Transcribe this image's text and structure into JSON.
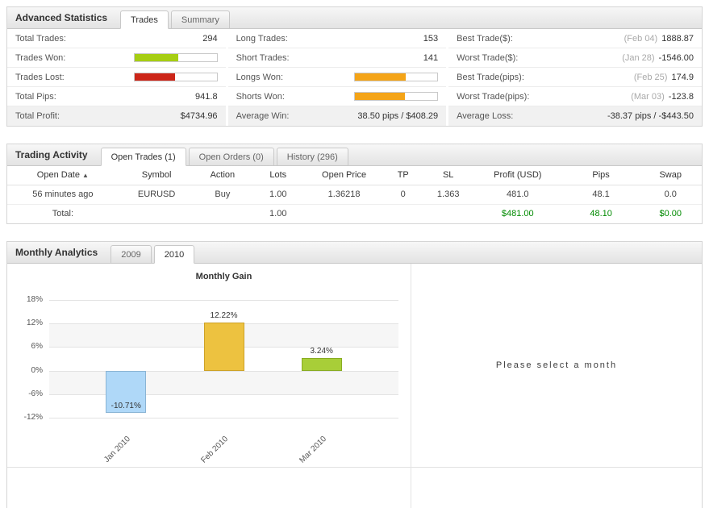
{
  "colors": {
    "won_bar": "#a6ce13",
    "lost_bar": "#cc2619",
    "longs_shorts_bar": "#f4a418",
    "total_green": "#008a00"
  },
  "stats": {
    "title": "Advanced Statistics",
    "tabs": [
      {
        "label": "Trades",
        "active": true
      },
      {
        "label": "Summary",
        "active": false
      }
    ],
    "rows": {
      "total_trades": {
        "label": "Total Trades:",
        "value": "294"
      },
      "trades_won": {
        "label": "Trades Won:",
        "bar_pct": 53,
        "bar_color": "#a6ce13"
      },
      "trades_lost": {
        "label": "Trades Lost:",
        "bar_pct": 49,
        "bar_color": "#cc2619"
      },
      "total_pips": {
        "label": "Total Pips:",
        "value": "941.8"
      },
      "total_profit": {
        "label": "Total Profit:",
        "value": "$4734.96"
      },
      "long_trades": {
        "label": "Long Trades:",
        "value": "153"
      },
      "short_trades": {
        "label": "Short Trades:",
        "value": "141"
      },
      "longs_won": {
        "label": "Longs Won:",
        "bar_pct": 62,
        "bar_color": "#f4a418"
      },
      "shorts_won": {
        "label": "Shorts Won:",
        "bar_pct": 61,
        "bar_color": "#f4a418"
      },
      "average_win": {
        "label": "Average Win:",
        "value": "38.50 pips / $408.29"
      },
      "best_trade_usd": {
        "label": "Best Trade($):",
        "date": "(Feb 04)",
        "value": "1888.87"
      },
      "worst_trade_usd": {
        "label": "Worst Trade($):",
        "date": "(Jan 28)",
        "value": "-1546.00"
      },
      "best_trade_pips": {
        "label": "Best Trade(pips):",
        "date": "(Feb 25)",
        "value": "174.9"
      },
      "worst_trade_pips": {
        "label": "Worst Trade(pips):",
        "date": "(Mar 03)",
        "value": "-123.8"
      },
      "average_loss": {
        "label": "Average Loss:",
        "value": "-38.37 pips / -$443.50"
      }
    }
  },
  "activity": {
    "title": "Trading Activity",
    "tabs": [
      {
        "label": "Open Trades (1)",
        "active": true
      },
      {
        "label": "Open Orders (0)",
        "active": false
      },
      {
        "label": "History (296)",
        "active": false
      }
    ],
    "columns": [
      "Open Date",
      "Symbol",
      "Action",
      "Lots",
      "Open Price",
      "TP",
      "SL",
      "Profit (USD)",
      "Pips",
      "Swap"
    ],
    "sort_indicator": "▲",
    "rows": [
      [
        "56 minutes ago",
        "EURUSD",
        "Buy",
        "1.00",
        "1.36218",
        "0",
        "1.363",
        "481.0",
        "48.1",
        "0.0"
      ]
    ],
    "total_row": {
      "label": "Total:",
      "lots": "1.00",
      "profit": "$481.00",
      "pips": "48.10",
      "swap": "$0.00"
    }
  },
  "monthly": {
    "title": "Monthly Analytics",
    "tabs": [
      {
        "label": "2009",
        "active": false
      },
      {
        "label": "2010",
        "active": true
      }
    ],
    "placeholder": "Please select a month"
  },
  "chart_data": {
    "type": "bar",
    "title": "Monthly Gain",
    "categories": [
      "Jan 2010",
      "Feb 2010",
      "Mar 2010"
    ],
    "values": [
      -10.71,
      12.22,
      3.24
    ],
    "value_labels": [
      "-10.71%",
      "12.22%",
      "3.24%"
    ],
    "bar_colors": [
      "#afd8f8",
      "#edc240",
      "#a8ce38"
    ],
    "bar_border_colors": [
      "#8ab4d4",
      "#cda227",
      "#89ac22"
    ],
    "yticks": [
      18,
      12,
      6,
      0,
      -6,
      -12
    ],
    "ytick_suffix": "%",
    "ylim": [
      -15,
      21
    ],
    "xlabel": "",
    "ylabel": "",
    "grid": true,
    "legend": "none"
  }
}
